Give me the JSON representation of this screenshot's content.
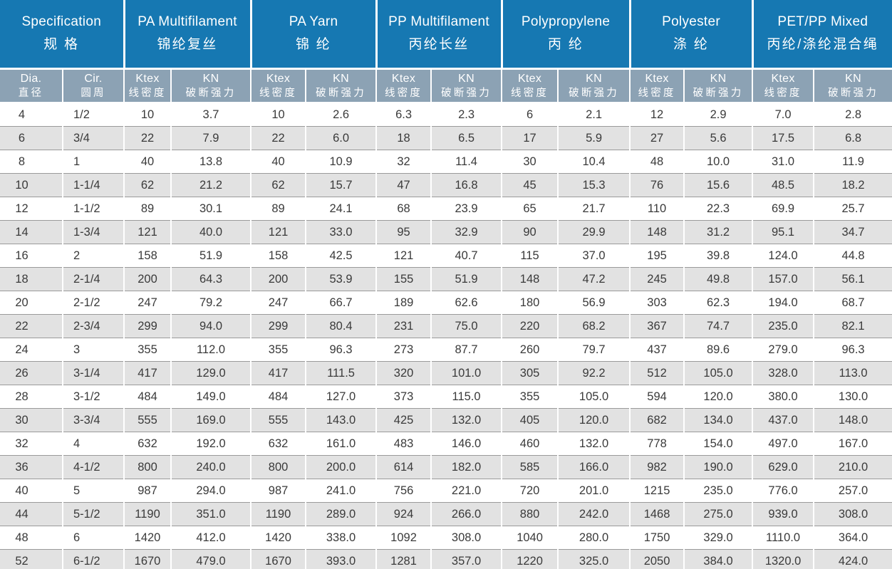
{
  "table": {
    "groups": [
      {
        "en": "Specification",
        "zh": "规 格",
        "sub": [
          {
            "en": "Dia.",
            "zh": "直径"
          },
          {
            "en": "Cir.",
            "zh": "圆周"
          }
        ]
      },
      {
        "en": "PA Multifilament",
        "zh": "锦纶复丝",
        "sub": [
          {
            "en": "Ktex",
            "zh": "线密度"
          },
          {
            "en": "KN",
            "zh": "破断强力"
          }
        ]
      },
      {
        "en": "PA Yarn",
        "zh": "锦 纶",
        "sub": [
          {
            "en": "Ktex",
            "zh": "线密度"
          },
          {
            "en": "KN",
            "zh": "破断强力"
          }
        ]
      },
      {
        "en": "PP Multifilament",
        "zh": "丙纶长丝",
        "sub": [
          {
            "en": "Ktex",
            "zh": "线密度"
          },
          {
            "en": "KN",
            "zh": "破断强力"
          }
        ]
      },
      {
        "en": "Polypropylene",
        "zh": "丙 纶",
        "sub": [
          {
            "en": "Ktex",
            "zh": "线密度"
          },
          {
            "en": "KN",
            "zh": "破断强力"
          }
        ]
      },
      {
        "en": "Polyester",
        "zh": "涤 纶",
        "sub": [
          {
            "en": "Ktex",
            "zh": "线密度"
          },
          {
            "en": "KN",
            "zh": "破断强力"
          }
        ]
      },
      {
        "en": "PET/PP Mixed",
        "zh": "丙纶/涤纶混合绳",
        "sub": [
          {
            "en": "Ktex",
            "zh": "线密度"
          },
          {
            "en": "KN",
            "zh": "破断强力"
          }
        ]
      }
    ],
    "rows": [
      [
        "4",
        "1/2",
        "10",
        "3.7",
        "10",
        "2.6",
        "6.3",
        "2.3",
        "6",
        "2.1",
        "12",
        "2.9",
        "7.0",
        "2.8"
      ],
      [
        "6",
        "3/4",
        "22",
        "7.9",
        "22",
        "6.0",
        "18",
        "6.5",
        "17",
        "5.9",
        "27",
        "5.6",
        "17.5",
        "6.8"
      ],
      [
        "8",
        "1",
        "40",
        "13.8",
        "40",
        "10.9",
        "32",
        "11.4",
        "30",
        "10.4",
        "48",
        "10.0",
        "31.0",
        "11.9"
      ],
      [
        "10",
        "1-1/4",
        "62",
        "21.2",
        "62",
        "15.7",
        "47",
        "16.8",
        "45",
        "15.3",
        "76",
        "15.6",
        "48.5",
        "18.2"
      ],
      [
        "12",
        "1-1/2",
        "89",
        "30.1",
        "89",
        "24.1",
        "68",
        "23.9",
        "65",
        "21.7",
        "110",
        "22.3",
        "69.9",
        "25.7"
      ],
      [
        "14",
        "1-3/4",
        "121",
        "40.0",
        "121",
        "33.0",
        "95",
        "32.9",
        "90",
        "29.9",
        "148",
        "31.2",
        "95.1",
        "34.7"
      ],
      [
        "16",
        "2",
        "158",
        "51.9",
        "158",
        "42.5",
        "121",
        "40.7",
        "115",
        "37.0",
        "195",
        "39.8",
        "124.0",
        "44.8"
      ],
      [
        "18",
        "2-1/4",
        "200",
        "64.3",
        "200",
        "53.9",
        "155",
        "51.9",
        "148",
        "47.2",
        "245",
        "49.8",
        "157.0",
        "56.1"
      ],
      [
        "20",
        "2-1/2",
        "247",
        "79.2",
        "247",
        "66.7",
        "189",
        "62.6",
        "180",
        "56.9",
        "303",
        "62.3",
        "194.0",
        "68.7"
      ],
      [
        "22",
        "2-3/4",
        "299",
        "94.0",
        "299",
        "80.4",
        "231",
        "75.0",
        "220",
        "68.2",
        "367",
        "74.7",
        "235.0",
        "82.1"
      ],
      [
        "24",
        "3",
        "355",
        "112.0",
        "355",
        "96.3",
        "273",
        "87.7",
        "260",
        "79.7",
        "437",
        "89.6",
        "279.0",
        "96.3"
      ],
      [
        "26",
        "3-1/4",
        "417",
        "129.0",
        "417",
        "111.5",
        "320",
        "101.0",
        "305",
        "92.2",
        "512",
        "105.0",
        "328.0",
        "113.0"
      ],
      [
        "28",
        "3-1/2",
        "484",
        "149.0",
        "484",
        "127.0",
        "373",
        "115.0",
        "355",
        "105.0",
        "594",
        "120.0",
        "380.0",
        "130.0"
      ],
      [
        "30",
        "3-3/4",
        "555",
        "169.0",
        "555",
        "143.0",
        "425",
        "132.0",
        "405",
        "120.0",
        "682",
        "134.0",
        "437.0",
        "148.0"
      ],
      [
        "32",
        "4",
        "632",
        "192.0",
        "632",
        "161.0",
        "483",
        "146.0",
        "460",
        "132.0",
        "778",
        "154.0",
        "497.0",
        "167.0"
      ],
      [
        "36",
        "4-1/2",
        "800",
        "240.0",
        "800",
        "200.0",
        "614",
        "182.0",
        "585",
        "166.0",
        "982",
        "190.0",
        "629.0",
        "210.0"
      ],
      [
        "40",
        "5",
        "987",
        "294.0",
        "987",
        "241.0",
        "756",
        "221.0",
        "720",
        "201.0",
        "1215",
        "235.0",
        "776.0",
        "257.0"
      ],
      [
        "44",
        "5-1/2",
        "1190",
        "351.0",
        "1190",
        "289.0",
        "924",
        "266.0",
        "880",
        "242.0",
        "1468",
        "275.0",
        "939.0",
        "308.0"
      ],
      [
        "48",
        "6",
        "1420",
        "412.0",
        "1420",
        "338.0",
        "1092",
        "308.0",
        "1040",
        "280.0",
        "1750",
        "329.0",
        "1110.0",
        "364.0"
      ],
      [
        "52",
        "6-1/2",
        "1670",
        "479.0",
        "1670",
        "393.0",
        "1281",
        "357.0",
        "1220",
        "325.0",
        "2050",
        "384.0",
        "1320.0",
        "424.0"
      ]
    ]
  },
  "colors": {
    "header_blue": "#1678b2",
    "subheader_slate": "#8CA2B4",
    "row_alt_gray": "#e2e2e2",
    "row_divider": "#9a9a9a",
    "text": "#3a3a3a"
  }
}
